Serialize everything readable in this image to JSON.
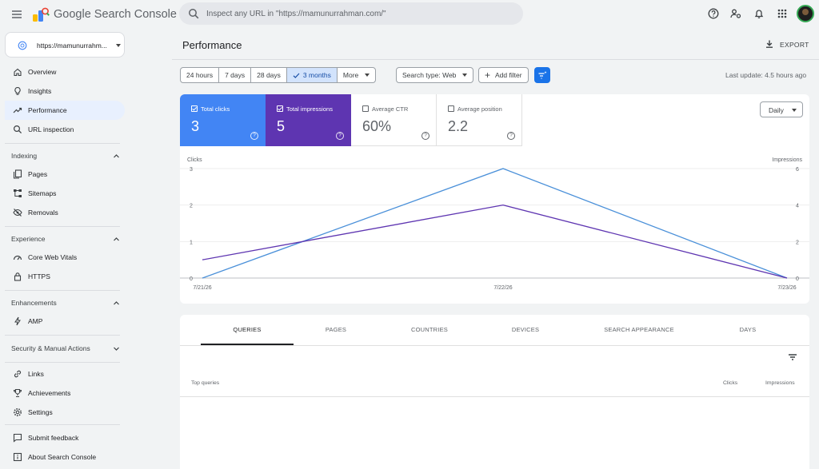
{
  "app": {
    "brand": "Google Search Console",
    "search_placeholder": "Inspect any URL in \"https://mamunurrahman.com/\""
  },
  "sidebar": {
    "property": "https://mamunurrahm...",
    "top_items": [
      {
        "label": "Overview",
        "icon": "home-icon"
      },
      {
        "label": "Insights",
        "icon": "lightbulb-icon"
      },
      {
        "label": "Performance",
        "icon": "trending-up-icon",
        "active": true
      },
      {
        "label": "URL inspection",
        "icon": "search-icon"
      }
    ],
    "sections": {
      "indexing": {
        "label": "Indexing",
        "items": [
          {
            "label": "Pages",
            "icon": "pages-icon"
          },
          {
            "label": "Sitemaps",
            "icon": "sitemap-icon"
          },
          {
            "label": "Removals",
            "icon": "removals-icon"
          }
        ]
      },
      "experience": {
        "label": "Experience",
        "items": [
          {
            "label": "Core Web Vitals",
            "icon": "speed-gauge-icon"
          },
          {
            "label": "HTTPS",
            "icon": "lock-icon"
          }
        ]
      },
      "enhancements": {
        "label": "Enhancements",
        "items": [
          {
            "label": "AMP",
            "icon": "lightning-icon"
          }
        ]
      },
      "security": {
        "label": "Security & Manual Actions"
      }
    },
    "bottom_items": [
      {
        "label": "Links",
        "icon": "link-icon"
      },
      {
        "label": "Achievements",
        "icon": "trophy-icon"
      },
      {
        "label": "Settings",
        "icon": "gear-icon"
      },
      {
        "label": "Submit feedback",
        "icon": "feedback-icon"
      },
      {
        "label": "About Search Console",
        "icon": "info-icon"
      }
    ]
  },
  "header": {
    "title": "Performance",
    "export_label": "EXPORT"
  },
  "toolbar": {
    "ranges": [
      "24 hours",
      "7 days",
      "28 days",
      "3 months",
      "More"
    ],
    "selected_range": "3 months",
    "search_type": "Search type: Web",
    "add_filter": "Add filter",
    "last_update": "Last update: 4.5 hours ago"
  },
  "metrics": [
    {
      "name": "Total clicks",
      "value": "3",
      "checked": true,
      "color": "#4285f4"
    },
    {
      "name": "Total impressions",
      "value": "5",
      "checked": true,
      "color": "#5e35b1"
    },
    {
      "name": "Average CTR",
      "value": "60%",
      "checked": false,
      "color": "#ffffff"
    },
    {
      "name": "Average position",
      "value": "2.2",
      "checked": false,
      "color": "#ffffff"
    }
  ],
  "granularity": "Daily",
  "chart_data": {
    "type": "line",
    "x": [
      "7/21/26",
      "7/22/26",
      "7/23/26"
    ],
    "series": [
      {
        "name": "Clicks",
        "axis": "left",
        "values": [
          0,
          3,
          0
        ],
        "color": "#4a90d9"
      },
      {
        "name": "Impressions",
        "axis": "right",
        "values": [
          1,
          4,
          0
        ],
        "color": "#5e35b1"
      }
    ],
    "ylabel_left": "Clicks",
    "ylabel_right": "Impressions",
    "ylim_left": [
      0,
      3
    ],
    "ylim_right": [
      0,
      6
    ],
    "yticks_left": [
      "0",
      "1",
      "2",
      "3"
    ],
    "yticks_right": [
      "0",
      "2",
      "4",
      "6"
    ],
    "grid": true
  },
  "table": {
    "tabs": [
      "QUERIES",
      "PAGES",
      "COUNTRIES",
      "DEVICES",
      "SEARCH APPEARANCE",
      "DAYS"
    ],
    "active_tab": "QUERIES",
    "columns": [
      "Top queries",
      "Clicks",
      "Impressions"
    ]
  }
}
